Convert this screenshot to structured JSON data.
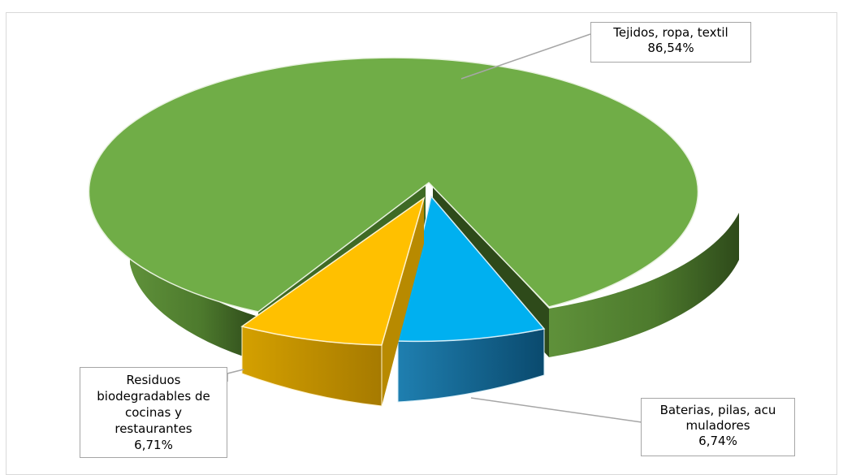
{
  "chart_data": {
    "type": "pie",
    "style": "3d-exploded",
    "title": "",
    "slices": [
      {
        "label": "Tejidos, ropa, textil",
        "value_text": "86,54%",
        "value": 86.54,
        "color": "#70ad47"
      },
      {
        "label": "Baterias, pilas, acu muladores",
        "label_lines": [
          "Baterias, pilas, acu",
          "muladores"
        ],
        "value_text": "6,74%",
        "value": 6.74,
        "color": "#00b0f0"
      },
      {
        "label": "Residuos biodegradables de cocinas y restaurantes",
        "label_lines": [
          "Residuos",
          "biodegradables de",
          "cocinas y",
          "restaurantes"
        ],
        "value_text": "6,71%",
        "value": 6.71,
        "color": "#ffc000"
      }
    ],
    "legend": "none"
  }
}
